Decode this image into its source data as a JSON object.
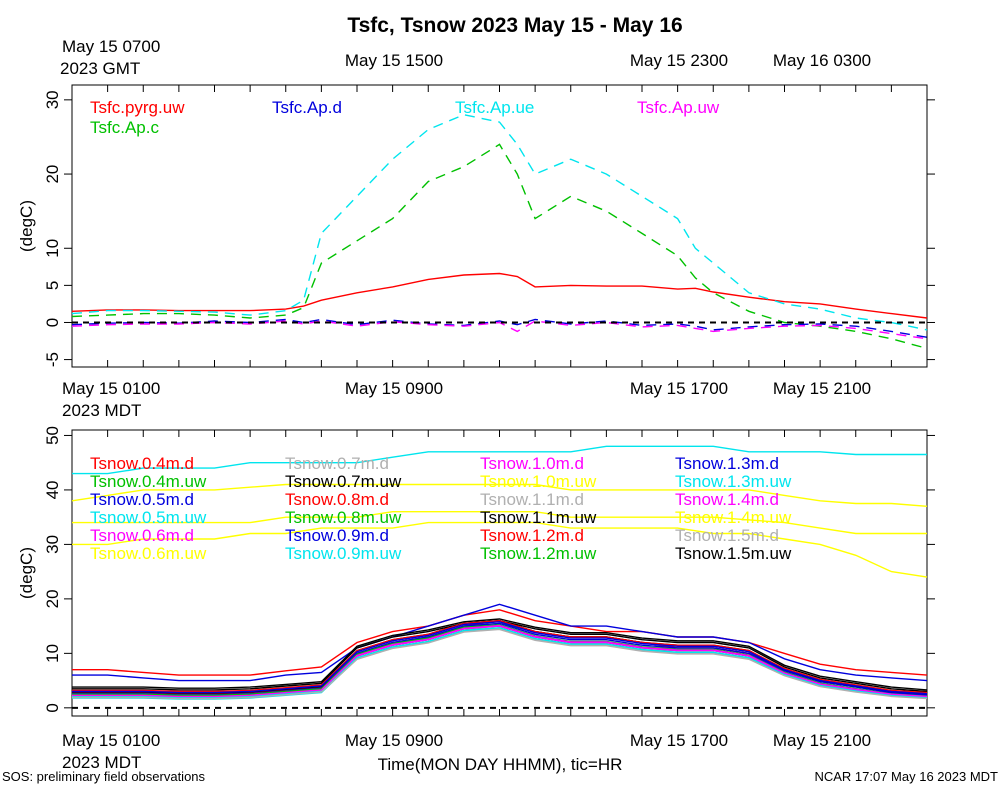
{
  "title": "Tsfc, Tsnow 2023 May 15 - May 16",
  "footer_left": "SOS: preliminary field observations",
  "footer_right": "NCAR 17:07 May 16 2023 MDT",
  "xlabel": "Time(MON DAY HHMM), tic=HR",
  "top_axis": {
    "first_label_line1": "May 15 0700",
    "first_label_line2": "2023 GMT",
    "labels": [
      "May 15 1500",
      "May 15 2300",
      "May 16 0300"
    ]
  },
  "bottom_axis": {
    "first_label_line1": "May 15 0100",
    "first_label_line2": "2023 MDT",
    "labels": [
      "May 15 0900",
      "May 15 1700",
      "May 15 2100"
    ]
  },
  "chart_data": [
    {
      "type": "line",
      "ylabel": "(degC)",
      "ylim": [
        -6,
        32
      ],
      "yticks": [
        -5,
        0,
        5,
        10,
        20,
        30
      ],
      "xlim": [
        0,
        24
      ],
      "zero_line": true,
      "x": [
        0,
        1,
        2,
        3,
        4,
        5,
        6,
        6.5,
        7,
        8,
        9,
        10,
        11,
        12,
        12.5,
        13,
        14,
        15,
        16,
        17,
        17.5,
        18,
        19,
        20,
        21,
        22,
        23,
        24
      ],
      "series": [
        {
          "name": "Tsfc.pyrg.uw",
          "color": "#ff0000",
          "style": "solid",
          "values": [
            1.5,
            1.7,
            1.7,
            1.6,
            1.6,
            1.6,
            1.8,
            2.2,
            3,
            4,
            4.8,
            5.8,
            6.4,
            6.6,
            6.2,
            4.8,
            5,
            4.9,
            4.9,
            4.5,
            4.6,
            4.1,
            3.4,
            2.8,
            2.5,
            1.8,
            1.2,
            0.6
          ]
        },
        {
          "name": "Tsfc.Ap.c",
          "color": "#00c000",
          "style": "dashed",
          "values": [
            0.8,
            1,
            1.2,
            1.2,
            1,
            0.6,
            1,
            2,
            8,
            11,
            14,
            19,
            21,
            24,
            20,
            14,
            17,
            15,
            12,
            9,
            6,
            4,
            1.5,
            0,
            -0.5,
            -1.2,
            -2.2,
            -3.5
          ]
        },
        {
          "name": "Tsfc.Ap.d",
          "color": "#0000dd",
          "style": "dashed",
          "values": [
            -0.3,
            -0.1,
            0,
            -0.1,
            0.2,
            0,
            0.4,
            0,
            0.4,
            -0.3,
            0.3,
            -0.2,
            -0.4,
            0.2,
            -0.3,
            0.4,
            -0.2,
            0.2,
            -0.4,
            -0.2,
            -0.5,
            -1,
            -0.6,
            -0.3,
            -0.2,
            -0.5,
            -1.2,
            -2
          ]
        },
        {
          "name": "Tsfc.Ap.uw",
          "color": "#ff00ff",
          "style": "dashed",
          "values": [
            -0.5,
            -0.3,
            -0.2,
            -0.2,
            0,
            -0.2,
            0.2,
            -0.2,
            0.2,
            -0.5,
            0.1,
            -0.3,
            -0.5,
            0,
            -1.2,
            0.2,
            -0.4,
            0,
            -0.6,
            -0.4,
            -0.8,
            -1.2,
            -0.8,
            -0.5,
            -0.4,
            -0.8,
            -1.5,
            -2.2
          ]
        },
        {
          "name": "Tsfc.Ap.ue",
          "color": "#00e5ee",
          "style": "dashed",
          "values": [
            1.2,
            1.6,
            1.6,
            1.5,
            1.4,
            1,
            1.6,
            3,
            12,
            17,
            22,
            26,
            28,
            27,
            24,
            20,
            22,
            20,
            17,
            14,
            10,
            8,
            4,
            2.5,
            1.8,
            0.6,
            0,
            -1
          ]
        }
      ]
    },
    {
      "type": "line",
      "ylabel": "(degC)",
      "ylim": [
        -1.5,
        51
      ],
      "yticks": [
        0,
        10,
        20,
        30,
        40,
        50
      ],
      "xlim": [
        0,
        24
      ],
      "zero_line": true,
      "x": [
        0,
        1,
        2,
        3,
        4,
        5,
        6,
        7,
        8,
        9,
        10,
        11,
        12,
        13,
        14,
        15,
        16,
        17,
        18,
        19,
        20,
        21,
        22,
        23,
        24
      ],
      "series": [
        {
          "name": "Tsnow.0.4m.d",
          "color": "#ff0000",
          "values": [
            7,
            7,
            6.5,
            6,
            6,
            6,
            6.8,
            7.5,
            12,
            14,
            15,
            17,
            18,
            16,
            15,
            14,
            14,
            13,
            13,
            12,
            10,
            8,
            7,
            6.5,
            6
          ]
        },
        {
          "name": "Tsnow.0.4m.uw",
          "color": "#00c000",
          "values": [
            3,
            3,
            3,
            2.8,
            2.8,
            3,
            3.5,
            4,
            10,
            12,
            13,
            15,
            15.5,
            14,
            13,
            13,
            12,
            11,
            11,
            10,
            7,
            5,
            4,
            3,
            2
          ]
        },
        {
          "name": "Tsnow.0.5m.d",
          "color": "#0000dd",
          "values": [
            6,
            6,
            5.5,
            5,
            5,
            5,
            6,
            6.5,
            11,
            13,
            15,
            17,
            19,
            17,
            15,
            15,
            14,
            13,
            13,
            12,
            9,
            7,
            6,
            5.5,
            5
          ]
        },
        {
          "name": "Tsnow.0.5m.uw",
          "color": "#00e5ee",
          "values": [
            43,
            43,
            44,
            44,
            44,
            45,
            45,
            45,
            45,
            46,
            47,
            47,
            47,
            47,
            47,
            48,
            48,
            48,
            48,
            47,
            47,
            47,
            46.5,
            46.5,
            46.5
          ]
        },
        {
          "name": "Tsnow.0.6m.d",
          "color": "#ff00ff",
          "values": [
            2.5,
            2.5,
            2.5,
            2.3,
            2.3,
            2.5,
            3,
            3.5,
            10,
            12,
            13,
            15,
            15,
            13,
            12,
            12,
            11,
            11,
            11,
            10,
            6.5,
            4.5,
            3.5,
            2.5,
            2
          ]
        },
        {
          "name": "Tsnow.0.6m.uw",
          "color": "#ffff00",
          "values": [
            38,
            39,
            40,
            40,
            40,
            40.5,
            41,
            41,
            41,
            41,
            41,
            41,
            41,
            41,
            40,
            40,
            40,
            40,
            40,
            40,
            39,
            38,
            37.5,
            37.5,
            37
          ]
        },
        {
          "name": "Tsnow.0.7m.d",
          "color": "#b0b0b0",
          "values": [
            2,
            2,
            2,
            2,
            2,
            2.2,
            2.8,
            3.2,
            9.5,
            11.5,
            12.5,
            14.5,
            14.5,
            12.5,
            11.5,
            11.5,
            10.5,
            10.5,
            10.5,
            9.5,
            6,
            4,
            3,
            2.2,
            1.8
          ]
        },
        {
          "name": "Tsnow.0.7m.uw",
          "color": "#000000",
          "values": [
            3.5,
            3.5,
            3.5,
            3.3,
            3.3,
            3.5,
            4,
            4.5,
            11,
            13,
            14,
            15.5,
            16,
            14.5,
            13.5,
            13.5,
            12.5,
            12,
            12,
            11,
            7.5,
            5.5,
            4.5,
            3.5,
            3
          ]
        },
        {
          "name": "Tsnow.0.8m.d",
          "color": "#ff0000",
          "values": [
            2.8,
            2.8,
            2.8,
            2.6,
            2.6,
            2.8,
            3.3,
            3.8,
            10,
            12,
            13,
            15,
            16,
            14,
            13,
            13,
            12,
            11,
            11,
            10,
            7,
            5,
            4,
            3,
            2.5
          ]
        },
        {
          "name": "Tsnow.0.8m.uw",
          "color": "#00c000",
          "values": [
            2.4,
            2.4,
            2.4,
            2.2,
            2.2,
            2.4,
            2.9,
            3.4,
            9.5,
            11.5,
            12.5,
            14.5,
            15,
            13,
            12,
            12,
            11,
            10.5,
            10.5,
            9.5,
            6.5,
            4.5,
            3.5,
            2.6,
            2.2
          ]
        },
        {
          "name": "Tsnow.0.9m.d",
          "color": "#0000dd",
          "values": [
            2.6,
            2.6,
            2.6,
            2.4,
            2.4,
            2.6,
            3.1,
            3.6,
            10,
            12,
            13,
            15,
            15.5,
            13.5,
            12.5,
            12.5,
            11.5,
            11,
            11,
            10,
            6.8,
            4.8,
            3.8,
            2.8,
            2.4
          ]
        },
        {
          "name": "Tsnow.0.9m.uw",
          "color": "#00e5ee",
          "values": [
            1.8,
            1.8,
            1.8,
            1.6,
            1.6,
            1.8,
            2.3,
            2.8,
            9,
            11,
            12,
            14,
            14.5,
            12.5,
            11.5,
            11.5,
            10.5,
            10,
            10,
            9,
            6,
            4,
            3,
            2.2,
            1.8
          ]
        },
        {
          "name": "Tsnow.1.0m.d",
          "color": "#ff00ff",
          "values": [
            2.2,
            2.2,
            2.2,
            2,
            2,
            2.2,
            2.7,
            3.2,
            9.5,
            11.5,
            12.5,
            14.5,
            15,
            13,
            12,
            12,
            11,
            10.5,
            10.5,
            9.5,
            6.3,
            4.3,
            3.3,
            2.4,
            2
          ]
        },
        {
          "name": "Tsnow.1.0m.uw",
          "color": "#ffff00",
          "values": [
            34,
            34,
            34,
            34,
            34,
            34,
            35,
            35,
            35,
            36,
            36,
            36,
            36,
            36,
            35,
            35,
            35,
            35,
            35,
            34.5,
            34,
            33,
            32,
            32,
            32
          ]
        },
        {
          "name": "Tsnow.1.1m.d",
          "color": "#b0b0b0",
          "values": [
            2,
            2,
            2,
            1.8,
            1.8,
            2,
            2.5,
            3,
            9,
            11,
            12,
            14,
            14.5,
            12.5,
            11.5,
            11.5,
            10.5,
            10,
            10,
            9,
            6,
            4,
            3,
            2.2,
            1.8
          ]
        },
        {
          "name": "Tsnow.1.1m.uw",
          "color": "#000000",
          "values": [
            2.9,
            2.9,
            2.9,
            2.7,
            2.7,
            2.9,
            3.4,
            3.9,
            10.5,
            12.5,
            13.5,
            15.5,
            16,
            14,
            13,
            13,
            12,
            11.5,
            11.5,
            10.5,
            7,
            5,
            4,
            3,
            2.6
          ]
        },
        {
          "name": "Tsnow.1.2m.d",
          "color": "#ff0000",
          "values": [
            3.2,
            3.2,
            3.2,
            3,
            3,
            3.2,
            3.7,
            4.2,
            10.5,
            12.5,
            13.5,
            15.5,
            16,
            14,
            13,
            13,
            12,
            11.5,
            11.5,
            10.5,
            7.2,
            5.2,
            4.2,
            3.2,
            2.8
          ]
        },
        {
          "name": "Tsnow.1.2m.uw",
          "color": "#00c000",
          "values": [
            2.5,
            2.5,
            2.5,
            2.3,
            2.3,
            2.5,
            3,
            3.5,
            9.8,
            11.8,
            12.8,
            14.8,
            15.2,
            13.2,
            12.2,
            12.2,
            11.2,
            10.7,
            10.7,
            9.7,
            6.5,
            4.5,
            3.5,
            2.5,
            2.1
          ]
        },
        {
          "name": "Tsnow.1.3m.d",
          "color": "#0000dd",
          "values": [
            3,
            3,
            3,
            2.8,
            2.8,
            3,
            3.5,
            4,
            10.3,
            12.3,
            13.3,
            15.3,
            15.8,
            13.8,
            12.8,
            12.8,
            11.8,
            11.3,
            11.3,
            10.3,
            7,
            5,
            4,
            3,
            2.6
          ]
        },
        {
          "name": "Tsnow.1.3m.uw",
          "color": "#00e5ee",
          "values": [
            2.1,
            2.1,
            2.1,
            1.9,
            1.9,
            2.1,
            2.6,
            3.1,
            9.2,
            11.2,
            12.2,
            14.2,
            14.7,
            12.7,
            11.7,
            11.7,
            10.7,
            10.2,
            10.2,
            9.2,
            6.1,
            4.1,
            3.1,
            2.3,
            1.9
          ]
        },
        {
          "name": "Tsnow.1.4m.d",
          "color": "#ff00ff",
          "values": [
            2.3,
            2.3,
            2.3,
            2.1,
            2.1,
            2.3,
            2.8,
            3.3,
            9.6,
            11.6,
            12.6,
            14.6,
            15.1,
            13.1,
            12.1,
            12.1,
            11.1,
            10.6,
            10.6,
            9.6,
            6.4,
            4.4,
            3.4,
            2.5,
            2.1
          ]
        },
        {
          "name": "Tsnow.1.4m.uw",
          "color": "#ffff00",
          "values": [
            30,
            30,
            31,
            31,
            31,
            32,
            32,
            33,
            33,
            33,
            34,
            34,
            34,
            34,
            33,
            33,
            33,
            33,
            32,
            32,
            31,
            30,
            28,
            25,
            24
          ]
        },
        {
          "name": "Tsnow.1.5m.d",
          "color": "#b0b0b0",
          "values": [
            1.9,
            1.9,
            1.9,
            1.7,
            1.7,
            1.9,
            2.4,
            2.9,
            8.9,
            10.9,
            11.9,
            13.9,
            14.4,
            12.4,
            11.4,
            11.4,
            10.4,
            9.9,
            9.9,
            8.9,
            5.9,
            3.9,
            2.9,
            2.1,
            1.7
          ]
        },
        {
          "name": "Tsnow.1.5m.uw",
          "color": "#000000",
          "values": [
            3.8,
            3.8,
            3.8,
            3.6,
            3.6,
            3.8,
            4.3,
            4.8,
            11.3,
            13.3,
            14.3,
            15.8,
            16.3,
            14.8,
            13.8,
            13.8,
            12.8,
            12.3,
            12.3,
            11.3,
            7.8,
            5.8,
            4.8,
            3.8,
            3.3
          ]
        }
      ]
    }
  ]
}
